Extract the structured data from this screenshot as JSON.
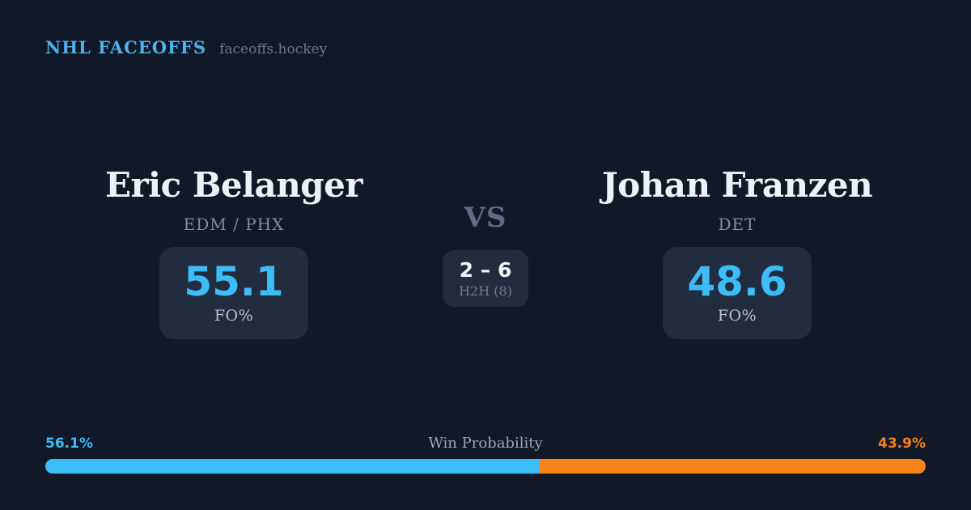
{
  "header": {
    "brand": "NHL FACEOFFS",
    "domain": "faceoffs.hockey"
  },
  "matchup": {
    "vs_label": "VS",
    "h2h": {
      "score": "2 – 6",
      "label": "H2H (8)"
    },
    "players": [
      {
        "name": "Eric Belanger",
        "team": "EDM / PHX",
        "fo_pct": "55.1",
        "fo_label": "FO%"
      },
      {
        "name": "Johan Franzen",
        "team": "DET",
        "fo_pct": "48.6",
        "fo_label": "FO%"
      }
    ]
  },
  "win_probability": {
    "title": "Win Probability",
    "left_pct": 56.1,
    "right_pct": 43.9,
    "left_label": "56.1%",
    "right_label": "43.9%",
    "left_color": "#3cbdf8",
    "right_color": "#f8821c"
  },
  "colors": {
    "background": "#111828",
    "card": "#212c3e",
    "brand_blue": "#4db3e8",
    "accent_blue": "#3cbdf8",
    "accent_orange": "#f8821c",
    "name_white": "#eef2f8",
    "muted_gray": "#7f8da1"
  }
}
